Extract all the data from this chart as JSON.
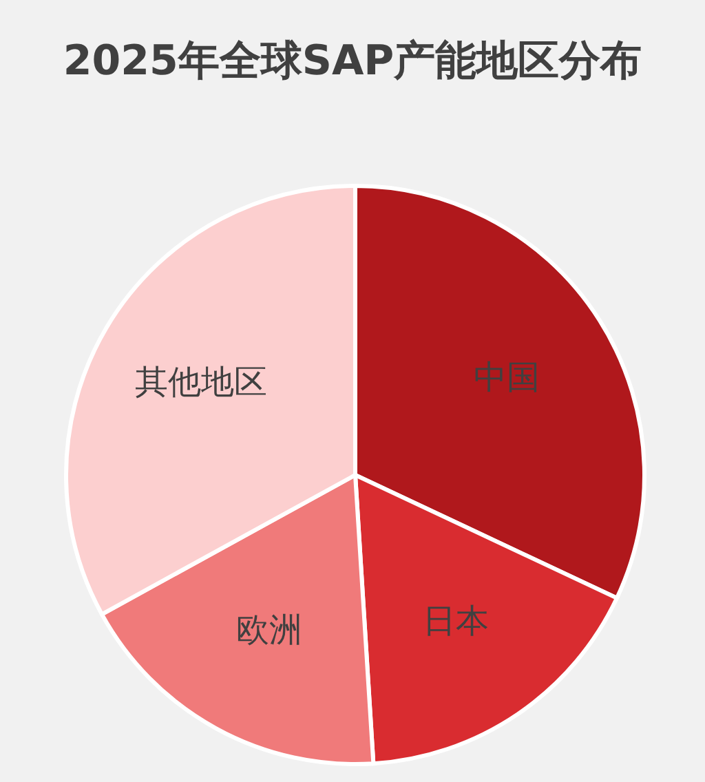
{
  "chart_data": {
    "type": "pie",
    "title": "2025年全球SAP产能地区分布",
    "categories": [
      "中国",
      "日本",
      "欧洲",
      "其他地区"
    ],
    "values": [
      32,
      17,
      18,
      33
    ],
    "colors": [
      "#b0181c",
      "#d92c30",
      "#f07a7a",
      "#fccfcf"
    ]
  }
}
